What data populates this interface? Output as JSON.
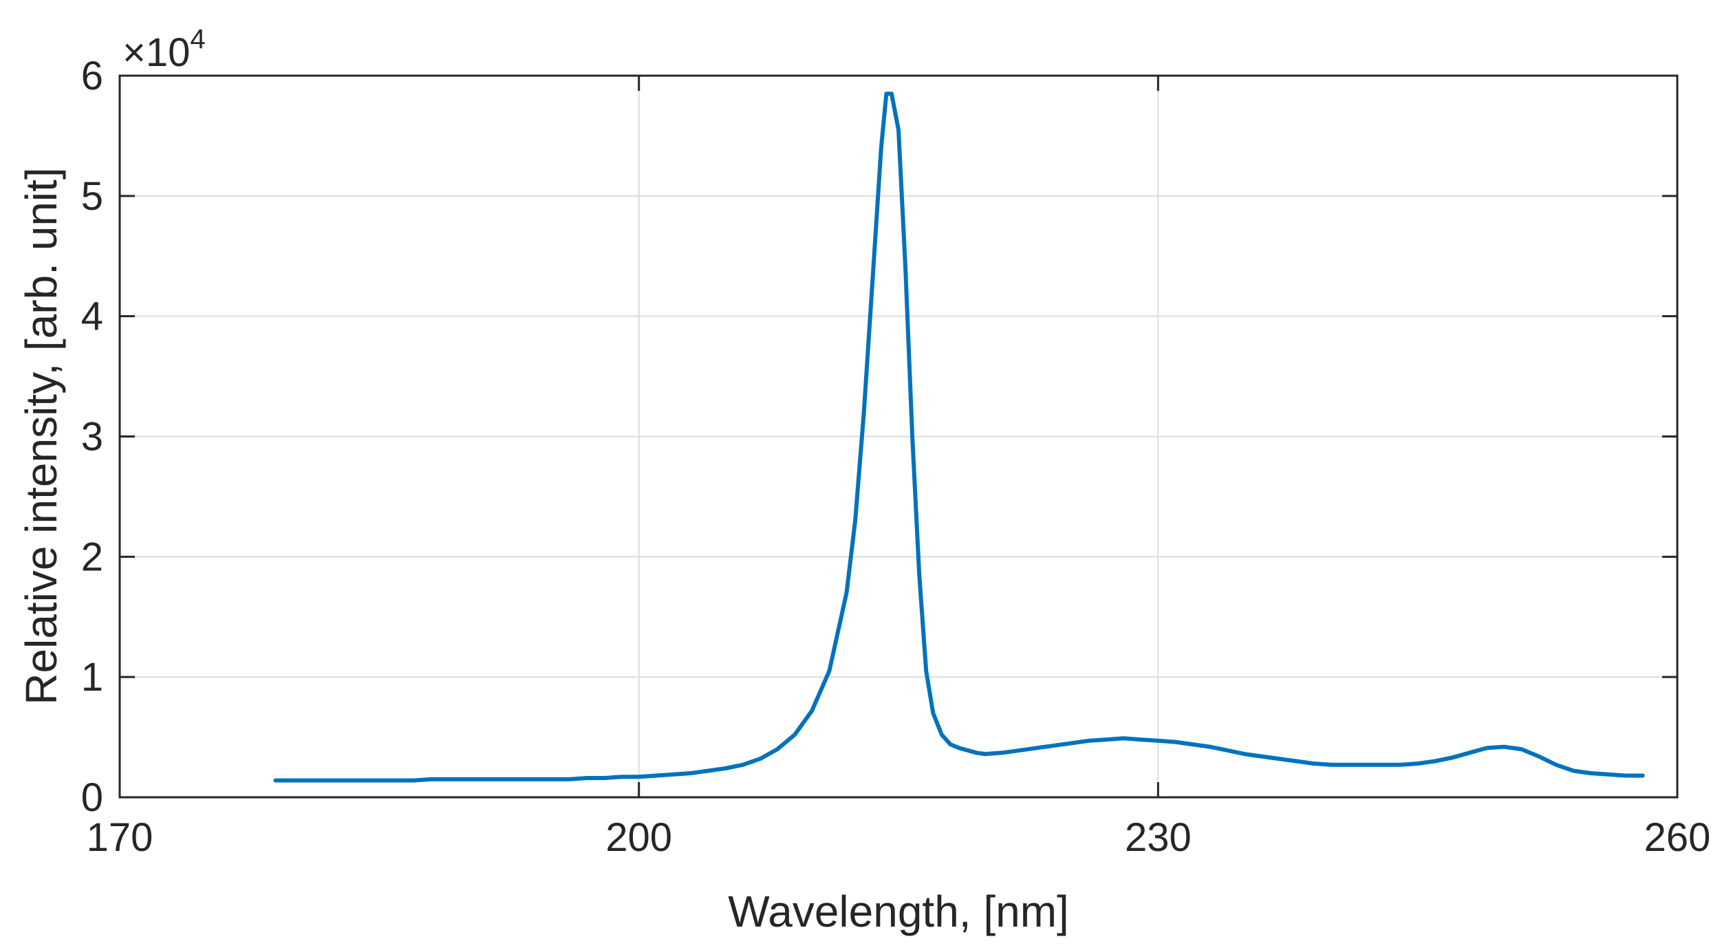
{
  "chart_data": {
    "type": "line",
    "title": "",
    "xlabel": "Wavelength, [nm]",
    "ylabel": "Relative intensity, [arb. unit]",
    "y_multiplier_label": {
      "base": "×10",
      "exponent": "4"
    },
    "xlim": [
      170,
      260
    ],
    "ylim": [
      0,
      6
    ],
    "x_ticks": [
      170,
      200,
      230,
      260
    ],
    "x_tick_labels": [
      "170",
      "200",
      "230",
      "260"
    ],
    "y_ticks": [
      0,
      1,
      2,
      3,
      4,
      5,
      6
    ],
    "y_tick_labels": [
      "0",
      "1",
      "2",
      "3",
      "4",
      "5",
      "6"
    ],
    "grid": true,
    "scale": "linear",
    "line_color": "#0072BD",
    "series": [
      {
        "x": [
          179,
          180,
          181,
          182,
          183,
          184,
          185,
          186,
          187,
          188,
          189,
          190,
          191,
          192,
          193,
          194,
          195,
          196,
          197,
          198,
          199,
          200,
          201,
          202,
          203,
          204,
          205,
          206,
          207,
          208,
          209,
          210,
          211,
          212,
          212.5,
          213,
          213.5,
          214,
          214.3,
          214.6,
          215,
          215.4,
          215.8,
          216.2,
          216.6,
          217,
          217.5,
          218,
          218.5,
          219,
          219.5,
          220,
          221,
          222,
          223,
          224,
          225,
          226,
          227,
          228,
          229,
          230,
          231,
          232,
          233,
          234,
          235,
          236,
          237,
          238,
          239,
          240,
          241,
          242,
          243,
          244,
          245,
          246,
          247,
          248,
          249,
          250,
          251,
          252,
          253,
          254,
          255,
          256,
          257,
          258
        ],
        "y": [
          0.14,
          0.14,
          0.14,
          0.14,
          0.14,
          0.14,
          0.14,
          0.14,
          0.14,
          0.15,
          0.15,
          0.15,
          0.15,
          0.15,
          0.15,
          0.15,
          0.15,
          0.15,
          0.16,
          0.16,
          0.17,
          0.17,
          0.18,
          0.19,
          0.2,
          0.22,
          0.24,
          0.27,
          0.32,
          0.4,
          0.52,
          0.72,
          1.05,
          1.7,
          2.3,
          3.2,
          4.3,
          5.4,
          5.85,
          5.85,
          5.55,
          4.4,
          3.0,
          1.85,
          1.05,
          0.7,
          0.52,
          0.44,
          0.41,
          0.39,
          0.37,
          0.36,
          0.37,
          0.39,
          0.41,
          0.43,
          0.45,
          0.47,
          0.48,
          0.49,
          0.48,
          0.47,
          0.46,
          0.44,
          0.42,
          0.39,
          0.36,
          0.34,
          0.32,
          0.3,
          0.28,
          0.27,
          0.27,
          0.27,
          0.27,
          0.27,
          0.28,
          0.3,
          0.33,
          0.37,
          0.41,
          0.42,
          0.4,
          0.34,
          0.27,
          0.22,
          0.2,
          0.19,
          0.18,
          0.18
        ]
      }
    ]
  }
}
